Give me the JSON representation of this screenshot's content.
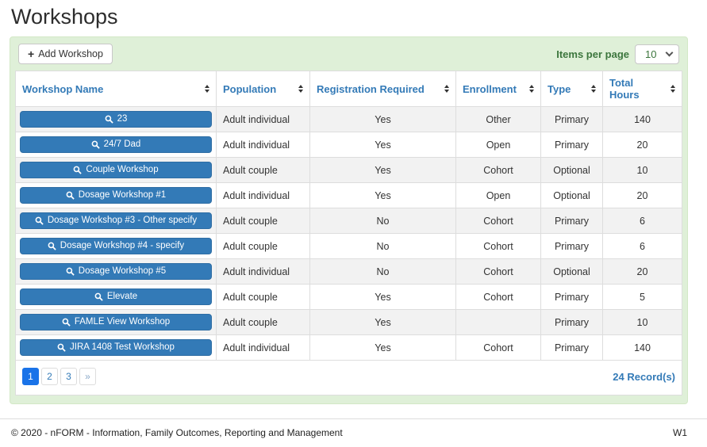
{
  "page": {
    "title": "Workshops"
  },
  "icons": {
    "add": "+",
    "next_page": "»"
  },
  "toolbar": {
    "add_button_label": "Add Workshop",
    "items_per_page_label": "Items per page",
    "items_per_page_value": "10"
  },
  "table": {
    "columns": [
      {
        "name": "workshop-name",
        "label": "Workshop Name"
      },
      {
        "name": "population",
        "label": "Population"
      },
      {
        "name": "registration-required",
        "label": "Registration Required"
      },
      {
        "name": "enrollment",
        "label": "Enrollment"
      },
      {
        "name": "type",
        "label": "Type"
      },
      {
        "name": "total-hours",
        "label": "Total Hours"
      }
    ],
    "rows": [
      {
        "name": "23",
        "population": "Adult individual",
        "registration": "Yes",
        "enrollment": "Other",
        "type": "Primary",
        "hours": "140"
      },
      {
        "name": "24/7 Dad",
        "population": "Adult individual",
        "registration": "Yes",
        "enrollment": "Open",
        "type": "Primary",
        "hours": "20"
      },
      {
        "name": "Couple Workshop",
        "population": "Adult couple",
        "registration": "Yes",
        "enrollment": "Cohort",
        "type": "Optional",
        "hours": "10"
      },
      {
        "name": "Dosage Workshop #1",
        "population": "Adult individual",
        "registration": "Yes",
        "enrollment": "Open",
        "type": "Optional",
        "hours": "20"
      },
      {
        "name": "Dosage Workshop #3 - Other specify",
        "population": "Adult couple",
        "registration": "No",
        "enrollment": "Cohort",
        "type": "Primary",
        "hours": "6"
      },
      {
        "name": "Dosage Workshop #4 - specify",
        "population": "Adult couple",
        "registration": "No",
        "enrollment": "Cohort",
        "type": "Primary",
        "hours": "6"
      },
      {
        "name": "Dosage Workshop #5",
        "population": "Adult individual",
        "registration": "No",
        "enrollment": "Cohort",
        "type": "Optional",
        "hours": "20"
      },
      {
        "name": "Elevate",
        "population": "Adult couple",
        "registration": "Yes",
        "enrollment": "Cohort",
        "type": "Primary",
        "hours": "5"
      },
      {
        "name": "FAMLE View Workshop",
        "population": "Adult couple",
        "registration": "Yes",
        "enrollment": "",
        "type": "Primary",
        "hours": "10"
      },
      {
        "name": "JIRA 1408 Test Workshop",
        "population": "Adult individual",
        "registration": "Yes",
        "enrollment": "Cohort",
        "type": "Primary",
        "hours": "140"
      }
    ]
  },
  "pagination": {
    "pages": [
      {
        "label": "1",
        "name": "page-button-1",
        "active": true
      },
      {
        "label": "2",
        "name": "page-button-2"
      },
      {
        "label": "3",
        "name": "page-button-3"
      },
      {
        "label": "»",
        "name": "next-page-button",
        "muted": true
      }
    ],
    "record_count": "24 Record(s)"
  },
  "footer": {
    "copyright": "© 2020 - nFORM - Information, Family Outcomes, Reporting and Management",
    "version": "W1"
  },
  "colors": {
    "primary_blue": "#337ab7",
    "active_page_blue": "#1a73e8",
    "panel_green": "#dff0d8",
    "success_green": "#3c763d",
    "row_stripe": "#f2f2f2",
    "border": "#dddddd"
  }
}
